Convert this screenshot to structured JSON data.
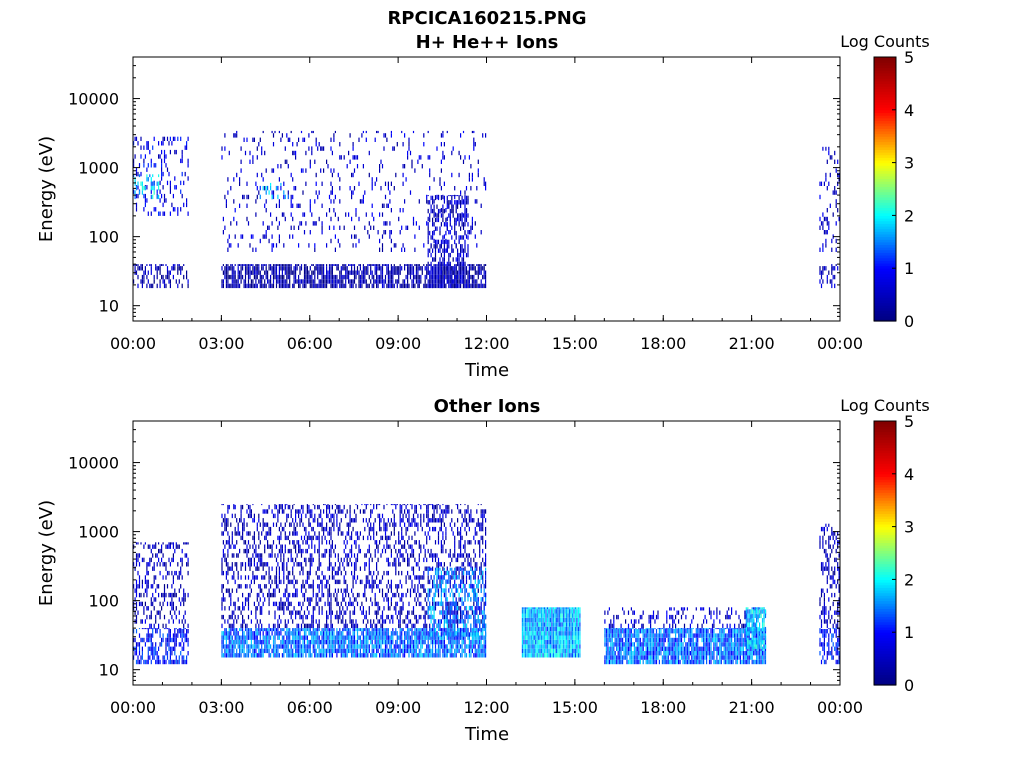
{
  "figure": {
    "title": "RPCICA160215.PNG"
  },
  "colors": {
    "colormap": "jet",
    "colormap_stops": [
      "#00007f",
      "#0000ff",
      "#00ffff",
      "#ffff00",
      "#ff0000",
      "#7f0000"
    ],
    "background": "#ffffff"
  },
  "chart_data": [
    {
      "type": "heatmap",
      "title": "H+ He++ Ions",
      "xlabel": "Time",
      "ylabel": "Energy (eV)",
      "xticks": [
        "00:00",
        "03:00",
        "06:00",
        "09:00",
        "12:00",
        "15:00",
        "18:00",
        "21:00",
        "00:00"
      ],
      "xlim_hours": [
        0,
        24
      ],
      "yscale": "log",
      "yticks": [
        10,
        100,
        1000,
        10000
      ],
      "yticklabels": [
        "10",
        "100",
        "1000",
        "10000"
      ],
      "ylim": [
        6,
        40000
      ],
      "colorbar": {
        "label": "Log Counts",
        "range": [
          0,
          5
        ],
        "ticks": [
          "0",
          "1",
          "2",
          "3",
          "4",
          "5"
        ]
      },
      "grid": false,
      "regions": [
        {
          "t0": 0.0,
          "t1": 1.9,
          "e0": 18,
          "e1": 40,
          "log_counts": 0.4,
          "density": 0.45
        },
        {
          "t0": 0.0,
          "t1": 1.9,
          "e0": 200,
          "e1": 2800,
          "log_counts": 0.8,
          "density": 0.2
        },
        {
          "t0": 0.0,
          "t1": 0.9,
          "e0": 350,
          "e1": 800,
          "log_counts": 1.8,
          "density": 0.25
        },
        {
          "t0": 3.0,
          "t1": 12.0,
          "e0": 18,
          "e1": 40,
          "log_counts": 0.3,
          "density": 0.75
        },
        {
          "t0": 3.0,
          "t1": 12.0,
          "e0": 60,
          "e1": 3400,
          "log_counts": 0.6,
          "density": 0.1
        },
        {
          "t0": 4.3,
          "t1": 5.3,
          "e0": 350,
          "e1": 600,
          "log_counts": 1.6,
          "density": 0.2
        },
        {
          "t0": 10.0,
          "t1": 11.4,
          "e0": 18,
          "e1": 400,
          "log_counts": 0.5,
          "density": 0.5
        },
        {
          "t0": 23.3,
          "t1": 24.0,
          "e0": 18,
          "e1": 40,
          "log_counts": 0.4,
          "density": 0.4
        },
        {
          "t0": 23.3,
          "t1": 24.0,
          "e0": 60,
          "e1": 2000,
          "log_counts": 0.6,
          "density": 0.15
        }
      ]
    },
    {
      "type": "heatmap",
      "title": "Other Ions",
      "xlabel": "Time",
      "ylabel": "Energy (eV)",
      "xticks": [
        "00:00",
        "03:00",
        "06:00",
        "09:00",
        "12:00",
        "15:00",
        "18:00",
        "21:00",
        "00:00"
      ],
      "xlim_hours": [
        0,
        24
      ],
      "yscale": "log",
      "yticks": [
        10,
        100,
        1000,
        10000
      ],
      "yticklabels": [
        "10",
        "100",
        "1000",
        "10000"
      ],
      "ylim": [
        6,
        40000
      ],
      "colorbar": {
        "label": "Log Counts",
        "range": [
          0,
          5
        ],
        "ticks": [
          "0",
          "1",
          "2",
          "3",
          "4",
          "5"
        ]
      },
      "grid": false,
      "regions": [
        {
          "t0": 0.0,
          "t1": 1.9,
          "e0": 12,
          "e1": 40,
          "log_counts": 1.0,
          "density": 0.55
        },
        {
          "t0": 0.0,
          "t1": 1.9,
          "e0": 40,
          "e1": 700,
          "log_counts": 0.5,
          "density": 0.3
        },
        {
          "t0": 3.0,
          "t1": 12.0,
          "e0": 15,
          "e1": 40,
          "log_counts": 1.4,
          "density": 0.85
        },
        {
          "t0": 3.0,
          "t1": 12.0,
          "e0": 40,
          "e1": 2500,
          "log_counts": 0.5,
          "density": 0.35
        },
        {
          "t0": 10.0,
          "t1": 12.0,
          "e0": 30,
          "e1": 300,
          "log_counts": 1.5,
          "density": 0.45
        },
        {
          "t0": 13.2,
          "t1": 15.2,
          "e0": 15,
          "e1": 80,
          "log_counts": 1.7,
          "density": 1.0
        },
        {
          "t0": 16.0,
          "t1": 21.5,
          "e0": 12,
          "e1": 40,
          "log_counts": 1.4,
          "density": 0.9
        },
        {
          "t0": 16.0,
          "t1": 21.5,
          "e0": 40,
          "e1": 80,
          "log_counts": 0.6,
          "density": 0.25
        },
        {
          "t0": 20.8,
          "t1": 21.5,
          "e0": 20,
          "e1": 80,
          "log_counts": 1.8,
          "density": 0.8
        },
        {
          "t0": 23.3,
          "t1": 24.0,
          "e0": 12,
          "e1": 40,
          "log_counts": 1.0,
          "density": 0.5
        },
        {
          "t0": 23.3,
          "t1": 24.0,
          "e0": 40,
          "e1": 1300,
          "log_counts": 0.5,
          "density": 0.3
        }
      ]
    }
  ]
}
